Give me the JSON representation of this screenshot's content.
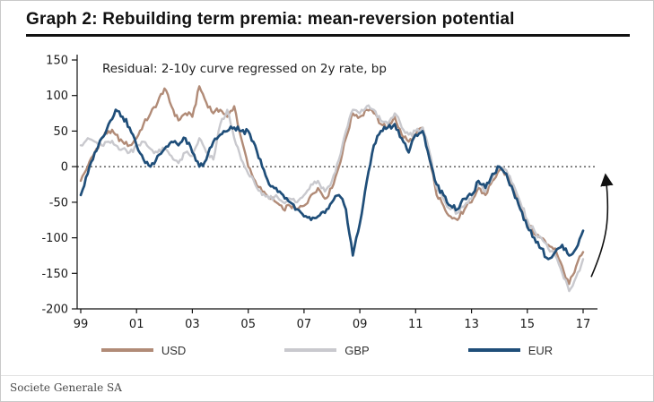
{
  "title": "Graph 2: Rebuilding term premia: mean-reversion potential",
  "footer": "Societe Generale SA",
  "chart_data": {
    "type": "line",
    "title": "Graph 2: Rebuilding term premia: mean-reversion potential",
    "annotation": "Residual: 2-10y curve regressed on 2y rate, bp",
    "xlabel": "",
    "ylabel": "",
    "x_tick_labels": [
      "99",
      "01",
      "03",
      "05",
      "07",
      "09",
      "11",
      "13",
      "15",
      "17"
    ],
    "x_tick_years": [
      1999,
      2001,
      2003,
      2005,
      2007,
      2009,
      2011,
      2013,
      2015,
      2017
    ],
    "y_ticks": [
      150,
      100,
      50,
      0,
      -50,
      -100,
      -150,
      -200
    ],
    "ylim": [
      -200,
      150
    ],
    "x_start": 1999,
    "x_step": 0.25,
    "grid": "off",
    "zero_line": "dashed",
    "legend_position": "bottom",
    "arrow_annotation": {
      "description": "upward mean-reversion arrow at right edge",
      "from_y": -155,
      "to_y": -12
    },
    "series": [
      {
        "name": "USD",
        "color": "#b18b77",
        "width": 2.4,
        "values": [
          -20,
          0,
          20,
          40,
          50,
          45,
          35,
          30,
          40,
          60,
          75,
          90,
          110,
          85,
          65,
          75,
          70,
          113,
          90,
          75,
          80,
          70,
          85,
          40,
          0,
          -20,
          -35,
          -45,
          -50,
          -60,
          -55,
          -60,
          -55,
          -40,
          -30,
          -45,
          -30,
          0,
          40,
          75,
          70,
          80,
          75,
          60,
          55,
          70,
          45,
          35,
          45,
          55,
          10,
          -40,
          -55,
          -70,
          -75,
          -60,
          -50,
          -30,
          -40,
          -20,
          -5,
          -10,
          -30,
          -55,
          -80,
          -95,
          -100,
          -110,
          -115,
          -140,
          -165,
          -140,
          -120
        ]
      },
      {
        "name": "GBP",
        "color": "#c9c9ce",
        "width": 2.4,
        "values": [
          30,
          40,
          35,
          30,
          35,
          30,
          25,
          20,
          30,
          35,
          25,
          20,
          25,
          15,
          5,
          20,
          15,
          40,
          20,
          10,
          60,
          80,
          40,
          10,
          -10,
          -25,
          -40,
          -45,
          -40,
          -50,
          -45,
          -50,
          -40,
          -25,
          -20,
          -35,
          -20,
          10,
          50,
          80,
          75,
          85,
          80,
          65,
          60,
          75,
          55,
          45,
          50,
          55,
          20,
          -30,
          -45,
          -60,
          -65,
          -55,
          -45,
          -25,
          -35,
          -15,
          0,
          -5,
          -25,
          -50,
          -75,
          -90,
          -100,
          -115,
          -125,
          -150,
          -175,
          -155,
          -130
        ]
      },
      {
        "name": "EUR",
        "color": "#1f4e79",
        "width": 2.7,
        "values": [
          -40,
          -10,
          20,
          40,
          60,
          80,
          70,
          55,
          30,
          10,
          0,
          15,
          25,
          35,
          30,
          40,
          20,
          0,
          10,
          35,
          45,
          50,
          55,
          50,
          50,
          30,
          0,
          -25,
          -30,
          -40,
          -50,
          -60,
          -70,
          -75,
          -70,
          -65,
          -50,
          -40,
          -60,
          -125,
          -80,
          -20,
          30,
          50,
          55,
          60,
          40,
          20,
          45,
          50,
          10,
          -25,
          -40,
          -55,
          -60,
          -45,
          -40,
          -20,
          -30,
          -10,
          0,
          -10,
          -35,
          -60,
          -85,
          -100,
          -115,
          -130,
          -120,
          -110,
          -125,
          -115,
          -90
        ]
      }
    ]
  }
}
